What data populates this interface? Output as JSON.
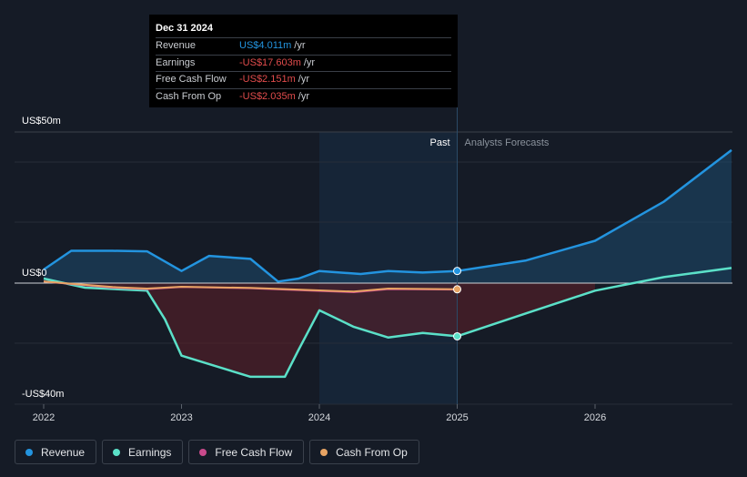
{
  "chart_data": {
    "type": "line",
    "x_ticks": [
      "2022",
      "2023",
      "2024",
      "2025",
      "2026"
    ],
    "y_labels": {
      "top": "US$50m",
      "zero": "US$0",
      "bottom": "-US$40m"
    },
    "ylim": [
      -40,
      50
    ],
    "past_label": "Past",
    "forecast_label": "Analysts Forecasts",
    "series": [
      {
        "name": "Revenue",
        "color": "#2394df",
        "points": [
          [
            2022.0,
            4.5
          ],
          [
            2022.2,
            10.7
          ],
          [
            2022.5,
            10.7
          ],
          [
            2022.75,
            10.5
          ],
          [
            2023.0,
            4.0
          ],
          [
            2023.2,
            9.0
          ],
          [
            2023.5,
            8.0
          ],
          [
            2023.7,
            0.5
          ],
          [
            2023.85,
            1.5
          ],
          [
            2024.0,
            4.0
          ],
          [
            2024.3,
            3.0
          ],
          [
            2024.5,
            4.0
          ],
          [
            2024.75,
            3.5
          ],
          [
            2025.0,
            4.011
          ],
          [
            2025.5,
            7.5
          ],
          [
            2026.0,
            14.0
          ],
          [
            2026.5,
            27.0
          ],
          [
            2026.99,
            44.0
          ]
        ]
      },
      {
        "name": "Earnings",
        "color": "#5be0c8",
        "points": [
          [
            2022.0,
            1.5
          ],
          [
            2022.3,
            -1.5
          ],
          [
            2022.75,
            -2.5
          ],
          [
            2022.88,
            -12.0
          ],
          [
            2023.0,
            -24.0
          ],
          [
            2023.25,
            -27.5
          ],
          [
            2023.5,
            -31.0
          ],
          [
            2023.75,
            -31.0
          ],
          [
            2023.85,
            -22.0
          ],
          [
            2024.0,
            -9.0
          ],
          [
            2024.25,
            -14.5
          ],
          [
            2024.5,
            -18.0
          ],
          [
            2024.75,
            -16.5
          ],
          [
            2025.0,
            -17.603
          ],
          [
            2025.5,
            -10.0
          ],
          [
            2026.0,
            -2.5
          ],
          [
            2026.5,
            2.0
          ],
          [
            2026.99,
            5.0
          ]
        ]
      },
      {
        "name": "Free Cash Flow",
        "color": "#c94a8c",
        "points": [
          [
            2022.0,
            0.5
          ],
          [
            2022.5,
            -1.5
          ],
          [
            2022.75,
            -2.0
          ],
          [
            2023.0,
            -1.3
          ],
          [
            2023.5,
            -1.7
          ],
          [
            2024.0,
            -2.6
          ],
          [
            2024.25,
            -3.0
          ],
          [
            2024.5,
            -2.0
          ],
          [
            2025.0,
            -2.151
          ]
        ]
      },
      {
        "name": "Cash From Op",
        "color": "#e8a464",
        "points": [
          [
            2022.0,
            0.5
          ],
          [
            2022.5,
            -1.3
          ],
          [
            2022.75,
            -1.8
          ],
          [
            2023.0,
            -1.2
          ],
          [
            2023.5,
            -1.6
          ],
          [
            2024.0,
            -2.4
          ],
          [
            2024.25,
            -2.8
          ],
          [
            2024.5,
            -1.8
          ],
          [
            2025.0,
            -2.035
          ]
        ]
      }
    ],
    "highlight_x": 2025.0,
    "grid": true,
    "legend": "bottom-left"
  },
  "tooltip": {
    "date": "Dec 31 2024",
    "rows": [
      {
        "label": "Revenue",
        "value": "US$4.011m",
        "unit": "/yr",
        "color": "#2394df"
      },
      {
        "label": "Earnings",
        "value": "-US$17.603m",
        "unit": "/yr",
        "color": "#e14c4c"
      },
      {
        "label": "Free Cash Flow",
        "value": "-US$2.151m",
        "unit": "/yr",
        "color": "#e14c4c"
      },
      {
        "label": "Cash From Op",
        "value": "-US$2.035m",
        "unit": "/yr",
        "color": "#e14c4c"
      }
    ]
  },
  "legend": [
    {
      "label": "Revenue",
      "color": "#2394df"
    },
    {
      "label": "Earnings",
      "color": "#5be0c8"
    },
    {
      "label": "Free Cash Flow",
      "color": "#c94a8c"
    },
    {
      "label": "Cash From Op",
      "color": "#e8a464"
    }
  ]
}
